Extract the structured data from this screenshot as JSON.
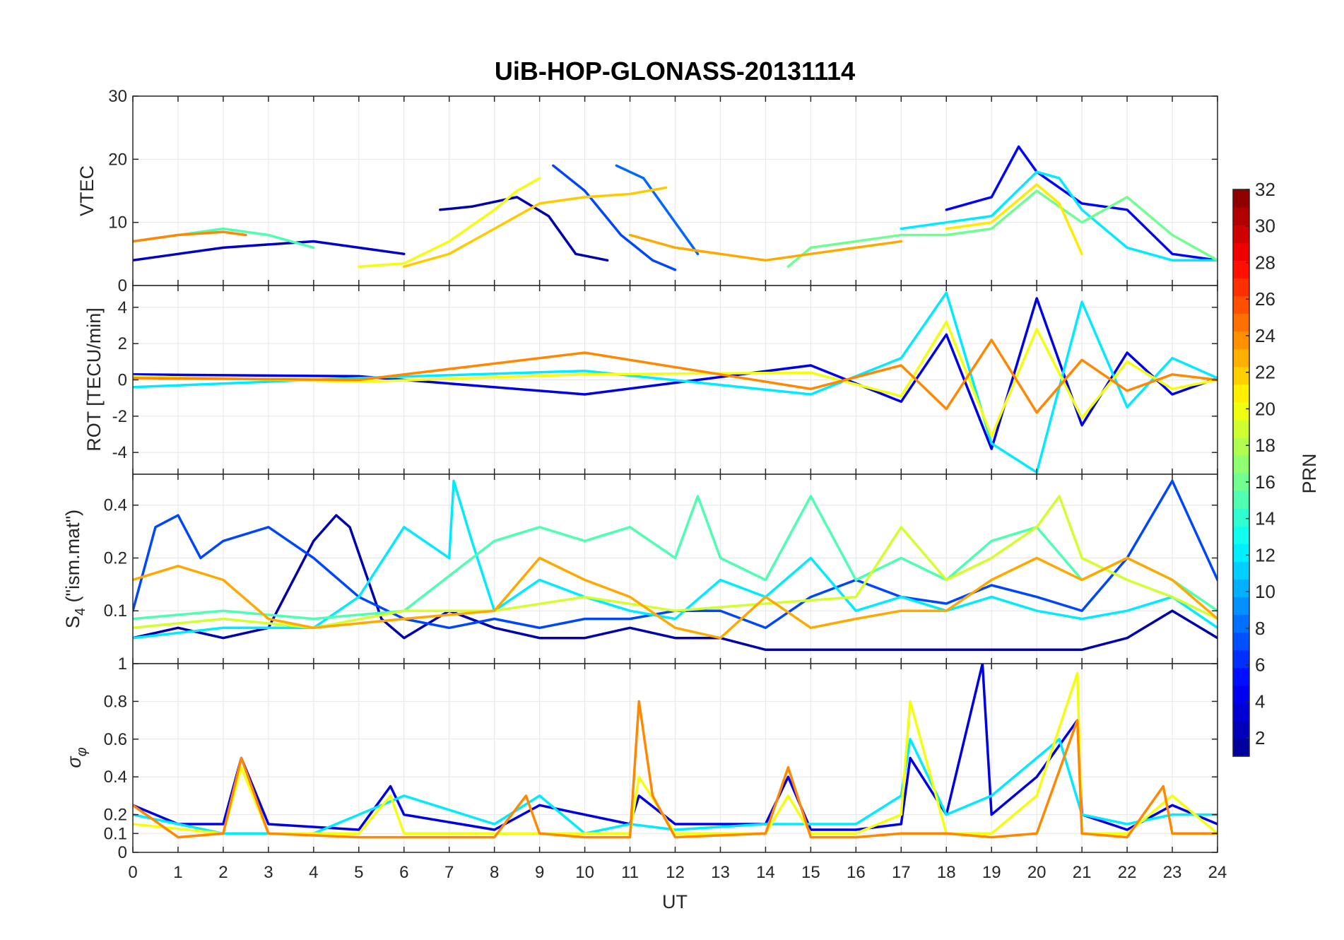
{
  "chart_data": {
    "title": "UiB-HOP-GLONASS-20131114",
    "xlabel": "UT",
    "x_range": [
      0,
      24
    ],
    "x_ticks": [
      "0",
      "1",
      "2",
      "3",
      "4",
      "5",
      "6",
      "7",
      "8",
      "9",
      "10",
      "11",
      "12",
      "13",
      "14",
      "15",
      "16",
      "17",
      "18",
      "19",
      "20",
      "21",
      "22",
      "23",
      "24"
    ],
    "grid": true,
    "colorbar": {
      "label": "PRN",
      "range": [
        1,
        32
      ],
      "ticks": [
        "2",
        "4",
        "6",
        "8",
        "10",
        "12",
        "14",
        "16",
        "18",
        "20",
        "22",
        "24",
        "26",
        "28",
        "30",
        "32"
      ],
      "colormap": "jet",
      "colormap_stops": [
        "#00008f",
        "#0000ff",
        "#0080ff",
        "#00ffff",
        "#80ff80",
        "#ffff00",
        "#ff8000",
        "#ff0000",
        "#800000"
      ],
      "location": "right"
    },
    "panels": [
      {
        "type": "line",
        "ylabel": "VTEC",
        "ylim": [
          0,
          30
        ],
        "yticks": [
          "0",
          "10",
          "20",
          "30"
        ],
        "series": [
          {
            "prn": 3,
            "x": [
              0,
              1,
              2,
              3,
              4,
              5,
              6
            ],
            "y": [
              4,
              5,
              6,
              6.5,
              7,
              6,
              5
            ]
          },
          {
            "prn": 2,
            "x": [
              6.8,
              7.5,
              8.5,
              9.2,
              9.8,
              10.5
            ],
            "y": [
              12,
              12.5,
              14,
              11,
              5,
              4
            ]
          },
          {
            "prn": 7,
            "x": [
              9.3,
              10,
              10.8,
              11.5,
              12
            ],
            "y": [
              19,
              15,
              8,
              4,
              2.5
            ]
          },
          {
            "prn": 8,
            "x": [
              10.7,
              11.3,
              12,
              12.5
            ],
            "y": [
              19,
              17,
              10,
              5
            ]
          },
          {
            "prn": 20,
            "x": [
              5,
              6,
              7,
              8,
              8.5,
              9
            ],
            "y": [
              3,
              3.5,
              7,
              12,
              15,
              17
            ]
          },
          {
            "prn": 22,
            "x": [
              6,
              7,
              8,
              9,
              10,
              11,
              11.8
            ],
            "y": [
              3,
              5,
              9,
              13,
              14,
              14.5,
              15.5
            ]
          },
          {
            "prn": 15,
            "x": [
              0,
              1,
              2,
              3,
              4
            ],
            "y": [
              7,
              8,
              9,
              8,
              6
            ]
          },
          {
            "prn": 24,
            "x": [
              0,
              1,
              2,
              2.5
            ],
            "y": [
              7,
              8,
              8.5,
              8
            ]
          },
          {
            "prn": 5,
            "x": [
              18,
              19,
              19.6,
              20,
              21,
              22,
              23,
              24
            ],
            "y": [
              12,
              14,
              22,
              18,
              13,
              12,
              5,
              4
            ]
          },
          {
            "prn": 12,
            "x": [
              17,
              18,
              19,
              20,
              20.5,
              21,
              22,
              23,
              24
            ],
            "y": [
              9,
              10,
              11,
              18,
              17,
              12,
              6,
              4,
              4
            ]
          },
          {
            "prn": 16,
            "x": [
              14.5,
              15,
              16,
              17,
              18,
              19,
              20,
              21,
              22,
              23,
              24
            ],
            "y": [
              3,
              6,
              7,
              8,
              8,
              9,
              15,
              10,
              14,
              8,
              4
            ]
          },
          {
            "prn": 21,
            "x": [
              18,
              19,
              20,
              20.5,
              21
            ],
            "y": [
              9,
              10,
              16,
              13,
              5
            ]
          },
          {
            "prn": 23,
            "x": [
              11,
              12,
              13,
              14,
              15,
              16,
              17
            ],
            "y": [
              8,
              6,
              5,
              4,
              5,
              6,
              7
            ]
          }
        ]
      },
      {
        "type": "line",
        "ylabel": "ROT [TECU/min]",
        "ylim": [
          -5.2,
          5.2
        ],
        "yticks": [
          "-4",
          "-2",
          "0",
          "2",
          "4"
        ],
        "series": [
          {
            "prn": 4,
            "x": [
              0,
              5,
              10,
              15,
              17,
              18,
              19,
              20,
              21,
              22,
              23,
              24
            ],
            "y": [
              0.3,
              0.2,
              -0.8,
              0.8,
              -1.2,
              2.5,
              -3.8,
              4.5,
              -2.5,
              1.5,
              -0.8,
              0.1
            ]
          },
          {
            "prn": 12,
            "x": [
              0,
              5,
              10,
              15,
              17,
              18,
              19,
              20,
              21,
              22,
              23,
              24
            ],
            "y": [
              -0.4,
              0.1,
              0.5,
              -0.8,
              1.2,
              4.8,
              -3.5,
              -5.1,
              4.3,
              -1.5,
              1.2,
              0.1
            ]
          },
          {
            "prn": 20,
            "x": [
              0,
              5,
              10,
              15,
              17,
              18,
              19,
              20,
              21,
              22,
              23,
              24
            ],
            "y": [
              0.2,
              -0.1,
              0.3,
              0.4,
              -0.9,
              3.2,
              -3.1,
              2.8,
              -2.1,
              1,
              -0.5,
              0
            ]
          },
          {
            "prn": 24,
            "x": [
              0,
              5,
              10,
              15,
              17,
              18,
              19,
              20,
              21,
              22,
              23,
              24
            ],
            "y": [
              0.1,
              0,
              1.5,
              -0.5,
              0.8,
              -1.6,
              2.2,
              -1.8,
              1.1,
              -0.6,
              0.3,
              0
            ]
          }
        ]
      },
      {
        "type": "line",
        "ylabel": "S4 (\"ism.mat\")",
        "ylabel_main": "S",
        "ylabel_sub": "4",
        "ylabel_rest": " (\"ism.mat\")",
        "ylim": [
          0.05,
          0.6
        ],
        "yscale": "log",
        "yticks": [
          "0.1",
          "0.2",
          "0.4"
        ],
        "series": [
          {
            "prn": 2,
            "x": [
              0,
              1,
              2,
              3,
              4,
              4.5,
              4.8,
              5.5,
              6,
              7,
              8,
              9,
              10,
              11,
              12,
              13,
              14,
              15,
              16,
              17,
              18,
              19,
              20,
              21,
              22,
              23,
              24
            ],
            "y": [
              0.07,
              0.08,
              0.07,
              0.08,
              0.25,
              0.35,
              0.3,
              0.09,
              0.07,
              0.1,
              0.08,
              0.07,
              0.07,
              0.08,
              0.07,
              0.07,
              0.06,
              0.06,
              0.06,
              0.06,
              0.06,
              0.06,
              0.06,
              0.06,
              0.07,
              0.1,
              0.07
            ]
          },
          {
            "prn": 7,
            "x": [
              0,
              0.5,
              1,
              1.5,
              2,
              3,
              4,
              5,
              6,
              7,
              8,
              9,
              10,
              11,
              12,
              13,
              14,
              15,
              16,
              17,
              18,
              19,
              20,
              21,
              22,
              23,
              24
            ],
            "y": [
              0.1,
              0.3,
              0.35,
              0.2,
              0.25,
              0.3,
              0.2,
              0.12,
              0.09,
              0.08,
              0.09,
              0.08,
              0.09,
              0.09,
              0.1,
              0.1,
              0.08,
              0.12,
              0.15,
              0.12,
              0.11,
              0.14,
              0.12,
              0.1,
              0.2,
              0.55,
              0.15
            ]
          },
          {
            "prn": 12,
            "x": [
              0,
              2,
              4,
              5,
              6,
              7,
              7.1,
              7.5,
              8,
              9,
              10,
              11,
              12,
              13,
              14,
              15,
              16,
              17,
              18,
              19,
              20,
              21,
              22,
              23,
              24
            ],
            "y": [
              0.07,
              0.08,
              0.08,
              0.12,
              0.3,
              0.2,
              0.55,
              0.25,
              0.1,
              0.15,
              0.12,
              0.1,
              0.09,
              0.15,
              0.12,
              0.2,
              0.1,
              0.12,
              0.1,
              0.12,
              0.1,
              0.09,
              0.1,
              0.12,
              0.08
            ]
          },
          {
            "prn": 15,
            "x": [
              0,
              2,
              4,
              6,
              8,
              9,
              10,
              11,
              12,
              12.5,
              13,
              14,
              15,
              16,
              17,
              18,
              19,
              20,
              21,
              22,
              23,
              24
            ],
            "y": [
              0.09,
              0.1,
              0.09,
              0.1,
              0.25,
              0.3,
              0.25,
              0.3,
              0.2,
              0.45,
              0.2,
              0.15,
              0.45,
              0.15,
              0.2,
              0.15,
              0.25,
              0.3,
              0.15,
              0.2,
              0.15,
              0.1
            ]
          },
          {
            "prn": 19,
            "x": [
              0,
              2,
              4,
              6,
              8,
              10,
              12,
              14,
              16,
              17,
              18,
              19,
              20,
              20.5,
              21,
              22,
              23,
              24
            ],
            "y": [
              0.08,
              0.09,
              0.08,
              0.1,
              0.1,
              0.12,
              0.1,
              0.11,
              0.12,
              0.3,
              0.15,
              0.2,
              0.3,
              0.45,
              0.2,
              0.15,
              0.12,
              0.09
            ]
          },
          {
            "prn": 23,
            "x": [
              0,
              1,
              2,
              3,
              4,
              6,
              8,
              9,
              10,
              11,
              12,
              13,
              14,
              15,
              16,
              17,
              18,
              19,
              20,
              21,
              22,
              23,
              24
            ],
            "y": [
              0.15,
              0.18,
              0.15,
              0.09,
              0.08,
              0.09,
              0.1,
              0.2,
              0.15,
              0.12,
              0.08,
              0.07,
              0.12,
              0.08,
              0.09,
              0.1,
              0.1,
              0.15,
              0.2,
              0.15,
              0.2,
              0.15,
              0.09
            ]
          }
        ]
      },
      {
        "type": "line",
        "ylabel": "σφ",
        "ylabel_main": "σ",
        "ylabel_sub": "φ",
        "ylim": [
          0,
          1
        ],
        "yticks": [
          "0",
          "0.1",
          "0.2",
          "0.4",
          "0.6",
          "0.8",
          "1"
        ],
        "series": [
          {
            "prn": 4,
            "x": [
              0,
              1,
              2,
              2.4,
              3,
              5,
              5.7,
              6,
              8,
              9,
              11,
              11.2,
              12,
              14,
              14.5,
              15,
              16,
              17,
              17.2,
              18,
              18.8,
              19,
              20,
              20.9,
              21,
              22,
              23,
              24
            ],
            "y": [
              0.25,
              0.15,
              0.15,
              0.5,
              0.15,
              0.12,
              0.35,
              0.2,
              0.12,
              0.25,
              0.15,
              0.3,
              0.15,
              0.15,
              0.4,
              0.12,
              0.12,
              0.15,
              0.5,
              0.2,
              1,
              0.2,
              0.4,
              0.7,
              0.2,
              0.12,
              0.25,
              0.15
            ]
          },
          {
            "prn": 12,
            "x": [
              0,
              2,
              4,
              6,
              8,
              9,
              10,
              11,
              12,
              14,
              16,
              17,
              17.2,
              18,
              19,
              20,
              20.5,
              21,
              22,
              23,
              24
            ],
            "y": [
              0.2,
              0.1,
              0.1,
              0.3,
              0.15,
              0.3,
              0.1,
              0.15,
              0.12,
              0.15,
              0.15,
              0.3,
              0.6,
              0.2,
              0.3,
              0.5,
              0.6,
              0.2,
              0.15,
              0.2,
              0.2
            ]
          },
          {
            "prn": 20,
            "x": [
              0,
              2,
              2.4,
              3,
              5,
              5.7,
              6,
              8,
              10,
              11,
              11.2,
              12,
              14,
              14.5,
              15,
              16,
              17,
              17.2,
              18,
              19,
              20,
              20.9,
              21,
              22,
              23,
              24
            ],
            "y": [
              0.15,
              0.1,
              0.45,
              0.1,
              0.1,
              0.3,
              0.1,
              0.1,
              0.1,
              0.1,
              0.4,
              0.1,
              0.1,
              0.3,
              0.1,
              0.1,
              0.2,
              0.8,
              0.1,
              0.1,
              0.3,
              0.95,
              0.1,
              0.1,
              0.3,
              0.1
            ]
          },
          {
            "prn": 24,
            "x": [
              0,
              1,
              2,
              2.4,
              3,
              5,
              6,
              8,
              8.7,
              9,
              10,
              11,
              11.2,
              11.5,
              12,
              14,
              14.5,
              15,
              16,
              17,
              18,
              19,
              20,
              20.9,
              21,
              22,
              22.8,
              23,
              24
            ],
            "y": [
              0.25,
              0.08,
              0.1,
              0.5,
              0.1,
              0.08,
              0.08,
              0.08,
              0.3,
              0.1,
              0.08,
              0.08,
              0.8,
              0.3,
              0.08,
              0.1,
              0.45,
              0.08,
              0.08,
              0.1,
              0.1,
              0.08,
              0.1,
              0.7,
              0.1,
              0.08,
              0.35,
              0.1,
              0.1
            ]
          }
        ]
      }
    ]
  }
}
